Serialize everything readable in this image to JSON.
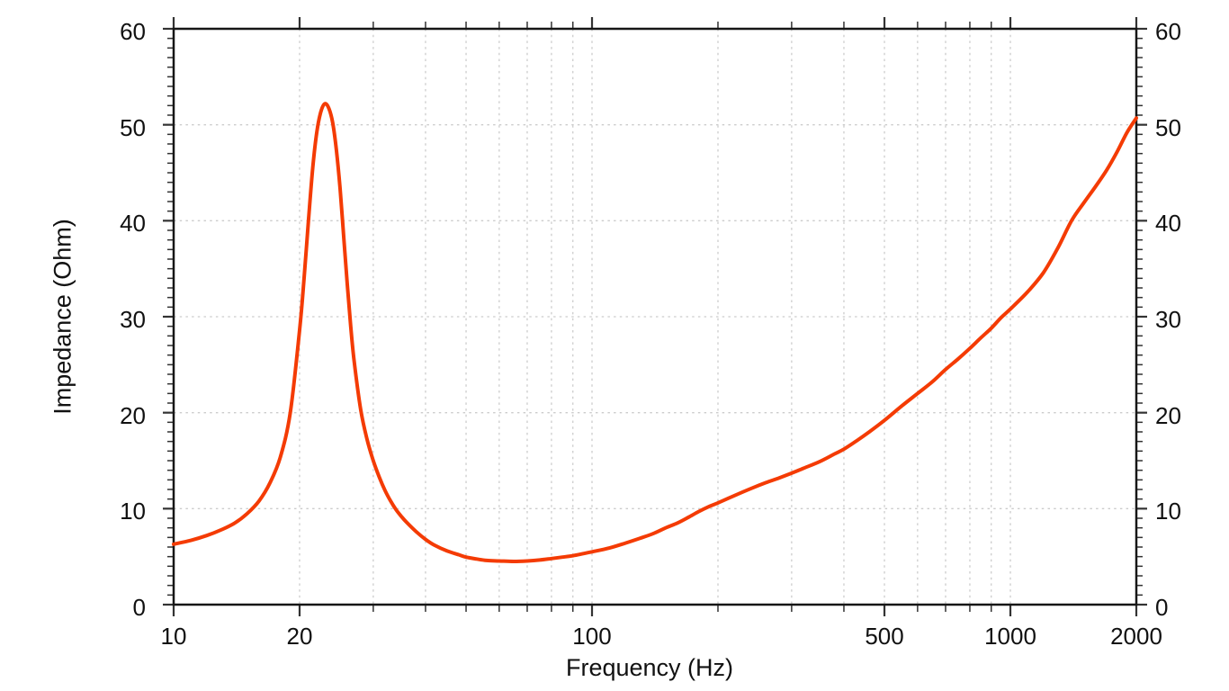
{
  "page": {
    "background": "#ffffff"
  },
  "chart_data": {
    "type": "line",
    "title": "",
    "xlabel": "Frequency (Hz)",
    "ylabel": "Impedance (Ohm)",
    "x_scale": "log",
    "xlim": [
      10,
      2000
    ],
    "ylim": [
      0,
      60
    ],
    "x_major_ticks": [
      10,
      20,
      100,
      500,
      1000,
      2000
    ],
    "x_major_tick_labels": [
      "10",
      "20",
      "100",
      "500",
      "1000",
      "2000"
    ],
    "x_minor_ticks": [
      30,
      40,
      50,
      60,
      70,
      80,
      90,
      200,
      300,
      400,
      600,
      700,
      800,
      900
    ],
    "y_major_ticks": [
      0,
      10,
      20,
      30,
      40,
      50,
      60
    ],
    "y_major_tick_labels": [
      "0",
      "10",
      "20",
      "30",
      "40",
      "50",
      "60"
    ],
    "y_minor_step": 1,
    "grid_x": [
      20,
      30,
      40,
      50,
      60,
      70,
      80,
      90,
      100,
      200,
      300,
      400,
      500,
      600,
      700,
      800,
      900,
      1000
    ],
    "grid_y": [
      10,
      20,
      30,
      40,
      50
    ],
    "grid_on": true,
    "legend": "none",
    "colors": {
      "curve": "#f43b04",
      "grid": "#cccccc",
      "frame": "#161616",
      "tick": "#333333",
      "text": "#111111"
    },
    "series": [
      {
        "name": "Impedance",
        "color": "#f43b04",
        "points": [
          [
            10,
            6.3
          ],
          [
            11,
            6.7
          ],
          [
            12,
            7.2
          ],
          [
            13,
            7.8
          ],
          [
            14,
            8.5
          ],
          [
            15,
            9.5
          ],
          [
            16,
            10.8
          ],
          [
            17,
            12.7
          ],
          [
            18,
            15.4
          ],
          [
            19,
            20.0
          ],
          [
            20,
            28.6
          ],
          [
            20.5,
            34.0
          ],
          [
            21,
            40.0
          ],
          [
            21.5,
            45.5
          ],
          [
            22,
            49.3
          ],
          [
            22.5,
            51.4
          ],
          [
            23,
            52.2
          ],
          [
            23.5,
            51.7
          ],
          [
            24,
            50.2
          ],
          [
            24.5,
            47.3
          ],
          [
            25,
            43.3
          ],
          [
            25.5,
            38.3
          ],
          [
            26,
            33.4
          ],
          [
            26.5,
            29.0
          ],
          [
            27,
            25.4
          ],
          [
            28,
            20.3
          ],
          [
            29,
            17.2
          ],
          [
            30,
            15.0
          ],
          [
            31,
            13.3
          ],
          [
            32,
            11.9
          ],
          [
            33,
            10.8
          ],
          [
            34,
            9.9
          ],
          [
            35,
            9.2
          ],
          [
            36,
            8.6
          ],
          [
            38,
            7.6
          ],
          [
            40,
            6.8
          ],
          [
            42,
            6.2
          ],
          [
            45,
            5.6
          ],
          [
            48,
            5.2
          ],
          [
            50,
            4.95
          ],
          [
            53,
            4.75
          ],
          [
            56,
            4.6
          ],
          [
            60,
            4.55
          ],
          [
            65,
            4.5
          ],
          [
            70,
            4.55
          ],
          [
            75,
            4.65
          ],
          [
            80,
            4.8
          ],
          [
            85,
            4.95
          ],
          [
            90,
            5.1
          ],
          [
            95,
            5.3
          ],
          [
            100,
            5.5
          ],
          [
            110,
            5.9
          ],
          [
            120,
            6.4
          ],
          [
            130,
            6.9
          ],
          [
            140,
            7.4
          ],
          [
            150,
            8.0
          ],
          [
            160,
            8.5
          ],
          [
            170,
            9.1
          ],
          [
            180,
            9.7
          ],
          [
            190,
            10.2
          ],
          [
            200,
            10.6
          ],
          [
            220,
            11.4
          ],
          [
            240,
            12.1
          ],
          [
            260,
            12.7
          ],
          [
            280,
            13.2
          ],
          [
            300,
            13.7
          ],
          [
            320,
            14.2
          ],
          [
            350,
            14.9
          ],
          [
            380,
            15.7
          ],
          [
            400,
            16.2
          ],
          [
            430,
            17.1
          ],
          [
            460,
            18.0
          ],
          [
            500,
            19.2
          ],
          [
            550,
            20.7
          ],
          [
            600,
            22.0
          ],
          [
            650,
            23.2
          ],
          [
            700,
            24.5
          ],
          [
            750,
            25.6
          ],
          [
            800,
            26.7
          ],
          [
            850,
            27.8
          ],
          [
            900,
            28.8
          ],
          [
            950,
            29.9
          ],
          [
            1000,
            30.8
          ],
          [
            1100,
            32.6
          ],
          [
            1200,
            34.6
          ],
          [
            1300,
            37.2
          ],
          [
            1400,
            40.0
          ],
          [
            1500,
            41.9
          ],
          [
            1600,
            43.6
          ],
          [
            1700,
            45.3
          ],
          [
            1800,
            47.2
          ],
          [
            1900,
            49.2
          ],
          [
            2000,
            50.7
          ]
        ]
      }
    ]
  }
}
